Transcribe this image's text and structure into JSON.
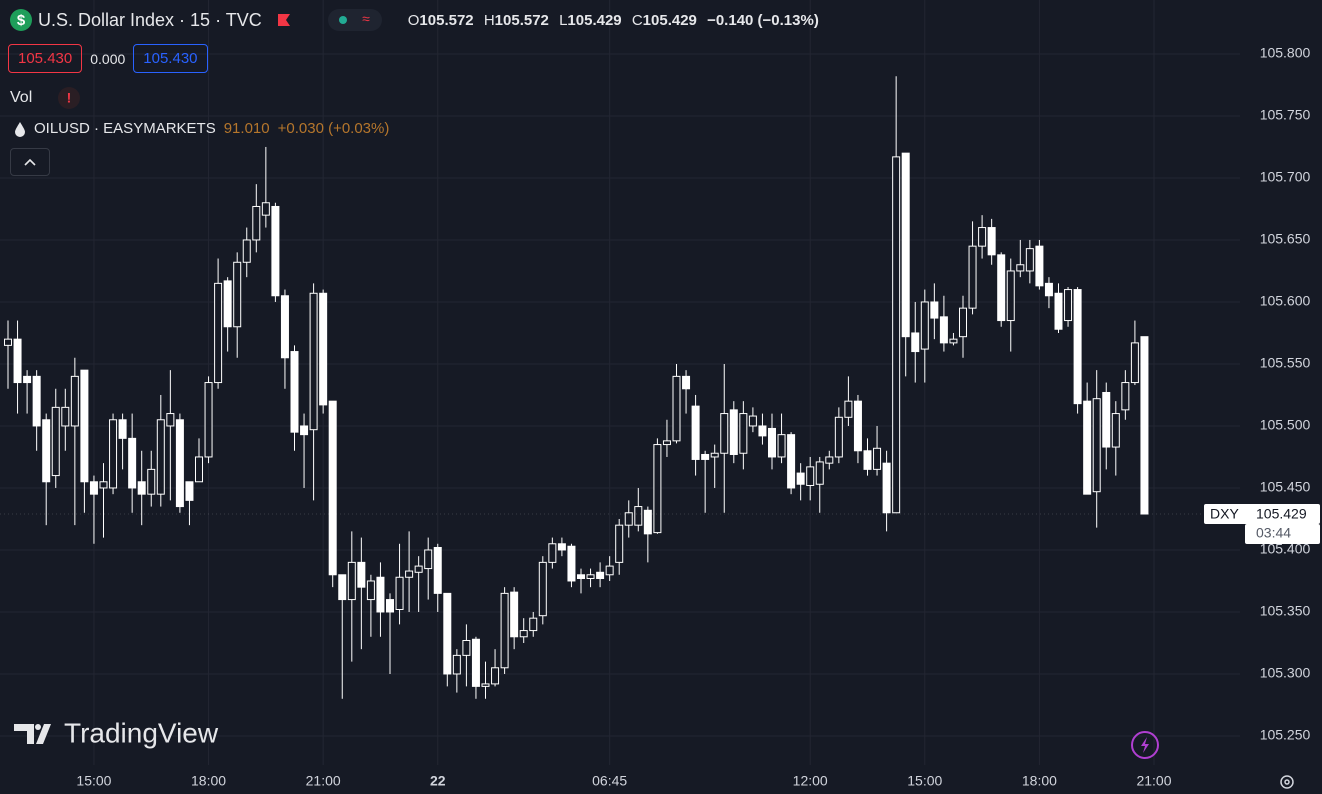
{
  "header": {
    "symbol": "U.S. Dollar Index · 15 · TVC",
    "ohlc": [
      {
        "label": "O",
        "value": "105.572"
      },
      {
        "label": "H",
        "value": "105.572"
      },
      {
        "label": "L",
        "value": "105.429"
      },
      {
        "label": "C",
        "value": "105.429"
      }
    ],
    "change": "−0.140 (−0.13%)",
    "sell": "105.430",
    "spread": "0.000",
    "buy": "105.430",
    "volume": "Vol",
    "overlay": {
      "name": "OILUSD · EASYMARKETS",
      "price": "91.010",
      "change": "+0.030 (+0.03%)"
    },
    "watermark": "TradingView"
  },
  "chart_data": {
    "type": "candlestick",
    "categories": [
      null,
      null,
      null,
      null,
      null,
      null,
      null,
      null,
      null,
      "15:00",
      null,
      null,
      null,
      null,
      null,
      null,
      null,
      null,
      null,
      null,
      null,
      "18:00",
      null,
      null,
      null,
      null,
      null,
      null,
      null,
      null,
      null,
      null,
      null,
      "21:00",
      null,
      null,
      null,
      null,
      null,
      null,
      null,
      null,
      null,
      null,
      null,
      "22",
      null,
      null,
      null,
      null,
      null,
      null,
      null,
      null,
      null,
      null,
      null,
      null,
      null,
      null,
      null,
      null,
      null,
      "06:45",
      null,
      null,
      null,
      null,
      null,
      null,
      null,
      null,
      null,
      null,
      null,
      null,
      null,
      null,
      null,
      null,
      null,
      null,
      null,
      null,
      "12:00",
      null,
      null,
      null,
      null,
      null,
      null,
      null,
      null,
      null,
      null,
      null,
      "15:00",
      null,
      null,
      null,
      null,
      null,
      null,
      null,
      null,
      null,
      null,
      null,
      "18:00",
      null,
      null,
      null,
      null,
      null,
      null,
      null,
      null,
      null,
      null,
      null,
      "21:00"
    ],
    "open": [
      105.565,
      105.57,
      105.54,
      105.54,
      105.505,
      105.46,
      105.5,
      105.5,
      105.545,
      105.455,
      105.45,
      105.45,
      105.505,
      105.49,
      105.455,
      105.445,
      105.445,
      105.5,
      105.505,
      105.455,
      105.455,
      105.475,
      105.535,
      105.617,
      105.58,
      105.632,
      105.65,
      105.67,
      105.677,
      105.605,
      105.56,
      105.5,
      105.497,
      105.607,
      105.52,
      105.38,
      105.36,
      105.39,
      105.36,
      105.378,
      105.36,
      105.352,
      105.378,
      105.382,
      105.385,
      105.402,
      105.365,
      105.3,
      105.315,
      105.328,
      105.29,
      105.292,
      105.305,
      105.366,
      105.33,
      105.335,
      105.347,
      105.39,
      105.405,
      105.403,
      105.38,
      105.377,
      105.382,
      105.38,
      105.39,
      105.42,
      105.42,
      105.432,
      105.414,
      105.485,
      105.488,
      105.54,
      105.516,
      105.477,
      105.475,
      105.478,
      105.513,
      105.478,
      105.5,
      105.5,
      105.498,
      105.475,
      105.493,
      105.462,
      105.452,
      105.453,
      105.47,
      105.475,
      105.507,
      105.52,
      105.48,
      105.465,
      105.47,
      105.43,
      105.72,
      105.575,
      105.562,
      105.6,
      105.588,
      105.567,
      105.572,
      105.595,
      105.645,
      105.66,
      105.638,
      105.585,
      105.625,
      105.625,
      105.645,
      105.615,
      105.607,
      105.585,
      105.61,
      105.52,
      105.447,
      105.527,
      105.483,
      105.513,
      105.535,
      105.572,
      null
    ],
    "high": [
      105.585,
      105.585,
      105.545,
      105.545,
      105.51,
      105.53,
      105.53,
      105.555,
      105.545,
      105.46,
      105.47,
      105.51,
      105.51,
      105.51,
      105.48,
      105.48,
      105.525,
      105.545,
      105.51,
      105.455,
      105.49,
      105.54,
      105.635,
      105.62,
      105.64,
      105.66,
      105.695,
      105.725,
      105.68,
      105.61,
      105.565,
      105.51,
      105.615,
      105.61,
      105.52,
      105.38,
      105.415,
      105.41,
      105.38,
      105.39,
      105.365,
      105.405,
      105.415,
      105.395,
      105.41,
      105.405,
      105.365,
      105.32,
      105.34,
      105.33,
      105.31,
      105.32,
      105.37,
      105.37,
      105.345,
      105.35,
      105.395,
      105.41,
      105.41,
      105.405,
      105.385,
      105.385,
      105.39,
      105.395,
      105.425,
      105.44,
      105.45,
      105.435,
      105.49,
      105.505,
      105.55,
      105.545,
      105.525,
      105.48,
      105.485,
      105.55,
      105.52,
      105.52,
      105.515,
      105.51,
      105.51,
      105.51,
      105.495,
      105.47,
      105.475,
      105.475,
      105.48,
      105.515,
      105.54,
      105.525,
      105.49,
      105.5,
      105.48,
      105.782,
      105.72,
      105.6,
      105.61,
      105.615,
      105.605,
      105.575,
      105.605,
      105.665,
      105.67,
      105.667,
      105.64,
      105.635,
      105.65,
      105.65,
      105.65,
      105.62,
      105.615,
      105.612,
      105.612,
      105.535,
      105.545,
      105.535,
      105.52,
      105.545,
      105.585,
      105.572,
      null
    ],
    "low": [
      105.53,
      105.51,
      105.51,
      105.48,
      105.42,
      105.45,
      105.48,
      105.42,
      105.43,
      105.405,
      105.41,
      105.445,
      105.465,
      105.43,
      105.42,
      105.435,
      105.435,
      105.44,
      105.43,
      105.42,
      105.455,
      105.47,
      105.53,
      105.56,
      105.555,
      105.62,
      105.64,
      105.66,
      105.6,
      105.53,
      105.48,
      105.45,
      105.44,
      105.51,
      105.37,
      105.28,
      105.31,
      105.32,
      105.33,
      105.33,
      105.3,
      105.34,
      105.35,
      105.35,
      105.36,
      105.35,
      105.29,
      105.285,
      105.29,
      105.28,
      105.28,
      105.29,
      105.3,
      105.32,
      105.325,
      105.33,
      105.34,
      105.385,
      105.395,
      105.37,
      105.365,
      105.37,
      105.37,
      105.375,
      105.38,
      105.41,
      105.415,
      105.39,
      105.413,
      105.475,
      105.486,
      105.51,
      105.46,
      105.43,
      105.45,
      105.43,
      105.47,
      105.465,
      105.495,
      105.485,
      105.465,
      105.47,
      105.445,
      105.44,
      105.44,
      105.43,
      105.465,
      105.47,
      105.5,
      105.47,
      105.46,
      105.46,
      105.415,
      105.43,
      105.54,
      105.535,
      105.535,
      105.57,
      105.56,
      105.565,
      105.555,
      105.59,
      105.635,
      105.63,
      105.58,
      105.56,
      105.62,
      105.615,
      105.61,
      105.595,
      105.575,
      105.58,
      105.51,
      105.445,
      105.418,
      105.465,
      105.46,
      105.505,
      105.533,
      105.429,
      null
    ],
    "close": [
      105.57,
      105.535,
      105.535,
      105.5,
      105.455,
      105.515,
      105.515,
      105.54,
      105.455,
      105.445,
      105.455,
      105.505,
      105.49,
      105.45,
      105.445,
      105.465,
      105.505,
      105.51,
      105.435,
      105.44,
      105.475,
      105.535,
      105.615,
      105.58,
      105.632,
      105.65,
      105.677,
      105.68,
      105.605,
      105.555,
      105.495,
      105.493,
      105.607,
      105.517,
      105.38,
      105.36,
      105.39,
      105.37,
      105.375,
      105.35,
      105.35,
      105.378,
      105.383,
      105.387,
      105.4,
      105.365,
      105.3,
      105.315,
      105.327,
      105.29,
      105.292,
      105.305,
      105.365,
      105.33,
      105.335,
      105.345,
      105.39,
      105.405,
      105.4,
      105.375,
      105.377,
      105.38,
      105.377,
      105.387,
      105.42,
      105.43,
      105.435,
      105.413,
      105.485,
      105.488,
      105.54,
      105.53,
      105.473,
      105.473,
      105.478,
      105.51,
      105.477,
      105.51,
      105.508,
      105.492,
      105.475,
      105.493,
      105.45,
      105.453,
      105.467,
      105.471,
      105.475,
      105.507,
      105.52,
      105.48,
      105.465,
      105.482,
      105.43,
      105.717,
      105.572,
      105.56,
      105.6,
      105.587,
      105.567,
      105.57,
      105.595,
      105.645,
      105.66,
      105.638,
      105.585,
      105.625,
      105.63,
      105.643,
      105.613,
      105.605,
      105.578,
      105.61,
      105.518,
      105.445,
      105.522,
      105.483,
      105.51,
      105.535,
      105.567,
      105.429,
      null
    ],
    "color": "#ffffff",
    "hollow_up": true,
    "ylim": [
      105.2266,
      105.8435
    ],
    "yticks": [
      {
        "value": 105.25,
        "label": "105.250"
      },
      {
        "value": 105.3,
        "label": "105.300"
      },
      {
        "value": 105.35,
        "label": "105.350"
      },
      {
        "value": 105.4,
        "label": "105.400"
      },
      {
        "value": 105.45,
        "label": "105.450"
      },
      {
        "value": 105.5,
        "label": "105.500"
      },
      {
        "value": 105.55,
        "label": "105.550"
      },
      {
        "value": 105.6,
        "label": "105.600"
      },
      {
        "value": 105.65,
        "label": "105.650"
      },
      {
        "value": 105.7,
        "label": "105.700"
      },
      {
        "value": 105.75,
        "label": "105.750"
      },
      {
        "value": 105.8,
        "label": "105.800"
      }
    ],
    "grid": true,
    "last_price": {
      "symbol": "DXY",
      "price": "105.429",
      "countdown": "03:44"
    }
  }
}
